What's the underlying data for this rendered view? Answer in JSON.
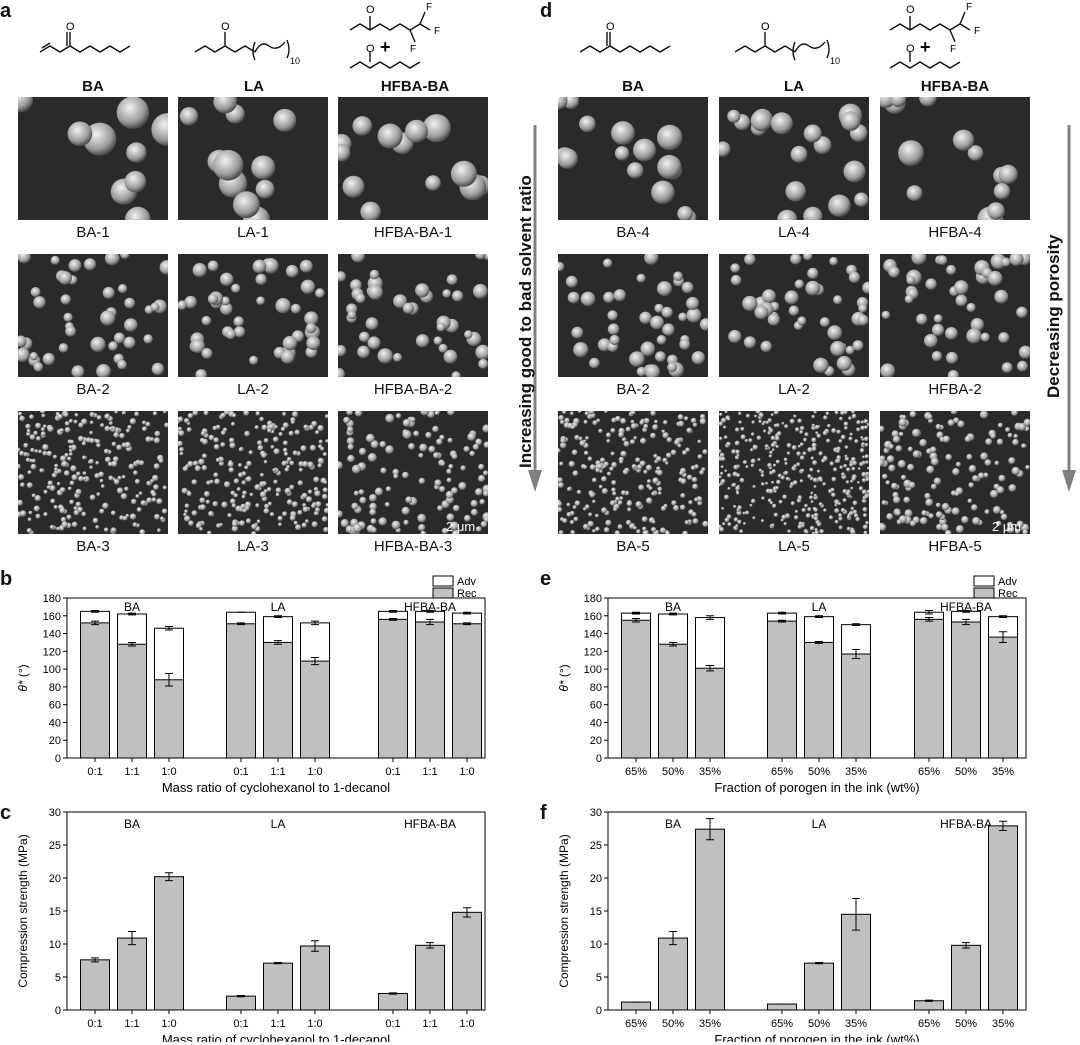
{
  "panel_letters": {
    "a": "a",
    "b": "b",
    "c": "c",
    "d": "d",
    "e": "e",
    "f": "f"
  },
  "monomers": [
    "BA",
    "LA",
    "HFBA-BA"
  ],
  "chem": {
    "f": "F",
    "plus": "+",
    "o": "O",
    "n": "10"
  },
  "left_arrow_label": "Increasing good  to bad solvent ratio",
  "right_arrow_label": "Decreasing porosity",
  "left_sem_labels": [
    [
      "BA-1",
      "LA-1",
      "HFBA-BA-1"
    ],
    [
      "BA-2",
      "LA-2",
      "HFBA-BA-2"
    ],
    [
      "BA-3",
      "LA-3",
      "HFBA-BA-3"
    ]
  ],
  "right_sem_labels": [
    [
      "BA-4",
      "LA-4",
      "HFBA-4"
    ],
    [
      "BA-2",
      "LA-2",
      "HFBA-2"
    ],
    [
      "BA-5",
      "LA-5",
      "HFBA-5"
    ]
  ],
  "scale_bar": "2 μm",
  "colors": {
    "rec": "#c0c0c0",
    "adv": "#ffffff",
    "bar": "#c0c0c0",
    "arrow": "#808080"
  },
  "chart_data": [
    {
      "id": "b",
      "type": "bar",
      "stacked": true,
      "ylabel": "θ* (°)",
      "ylim": [
        0,
        180
      ],
      "yticks": [
        0,
        20,
        40,
        60,
        80,
        100,
        120,
        140,
        160,
        180
      ],
      "xlabel": "Mass ratio of cyclohexanol to 1-decanol",
      "groups": [
        "BA",
        "LA",
        "HFBA-BA"
      ],
      "categories": [
        "0:1",
        "1:1",
        "1:0"
      ],
      "legend": [
        "Adv",
        "Rec"
      ],
      "series": [
        {
          "name": "Rec",
          "values": [
            [
              152,
              128,
              88
            ],
            [
              151,
              130,
              109
            ],
            [
              156,
              153,
              151
            ]
          ],
          "errors": [
            [
              2,
              2,
              7
            ],
            [
              1,
              2,
              4
            ],
            [
              1,
              3,
              1
            ]
          ]
        },
        {
          "name": "Adv",
          "values": [
            [
              165,
              162,
              146
            ],
            [
              164,
              159,
              152
            ],
            [
              165,
              165,
              163
            ]
          ],
          "errors": [
            [
              1,
              1,
              2
            ],
            [
              0,
              1,
              2
            ],
            [
              1,
              1,
              1
            ]
          ]
        }
      ]
    },
    {
      "id": "c",
      "type": "bar",
      "ylabel": "Compression strength (MPa)",
      "ylim": [
        0,
        30
      ],
      "yticks": [
        0,
        5,
        10,
        15,
        20,
        25,
        30
      ],
      "xlabel": "Mass ratio of cyclohexanol to 1-decanol",
      "groups": [
        "BA",
        "LA",
        "HFBA-BA"
      ],
      "categories": [
        "0:1",
        "1:1",
        "1:0"
      ],
      "series": [
        {
          "name": "",
          "values": [
            [
              7.6,
              10.9,
              20.2
            ],
            [
              2.1,
              7.1,
              9.7
            ],
            [
              2.5,
              9.8,
              14.8
            ]
          ],
          "errors": [
            [
              0.3,
              1.0,
              0.6
            ],
            [
              0.1,
              0.1,
              0.8
            ],
            [
              0.1,
              0.4,
              0.7
            ]
          ]
        }
      ]
    },
    {
      "id": "e",
      "type": "bar",
      "stacked": true,
      "ylabel": "θ* (°)",
      "ylim": [
        0,
        180
      ],
      "yticks": [
        0,
        20,
        40,
        60,
        80,
        100,
        120,
        140,
        160,
        180
      ],
      "xlabel": "Fraction of porogen in the ink (wt%)",
      "groups": [
        "BA",
        "LA",
        "HFBA-BA"
      ],
      "categories": [
        "65%",
        "50%",
        "35%"
      ],
      "legend": [
        "Adv",
        "Rec"
      ],
      "series": [
        {
          "name": "Rec",
          "values": [
            [
              155,
              128,
              101
            ],
            [
              154,
              130,
              117
            ],
            [
              156,
              153,
              136
            ]
          ],
          "errors": [
            [
              2,
              2,
              3
            ],
            [
              1,
              1,
              5
            ],
            [
              2,
              3,
              6
            ]
          ]
        },
        {
          "name": "Adv",
          "values": [
            [
              163,
              162,
              158
            ],
            [
              163,
              159,
              150
            ],
            [
              164,
              165,
              159
            ]
          ],
          "errors": [
            [
              1,
              1,
              2
            ],
            [
              1,
              1,
              1
            ],
            [
              2,
              1,
              1
            ]
          ]
        }
      ]
    },
    {
      "id": "f",
      "type": "bar",
      "ylabel": "Compression strength (MPa)",
      "ylim": [
        0,
        30
      ],
      "yticks": [
        0,
        5,
        10,
        15,
        20,
        25,
        30
      ],
      "xlabel": "Fraction of porogen in the ink (wt%)",
      "groups": [
        "BA",
        "LA",
        "HFBA-BA"
      ],
      "categories": [
        "65%",
        "50%",
        "35%"
      ],
      "series": [
        {
          "name": "",
          "values": [
            [
              1.2,
              10.9,
              27.4
            ],
            [
              0.9,
              7.1,
              14.5
            ],
            [
              1.4,
              9.8,
              27.9
            ]
          ],
          "errors": [
            [
              0,
              1.0,
              1.6
            ],
            [
              0,
              0.1,
              2.4
            ],
            [
              0.1,
              0.4,
              0.7
            ]
          ]
        }
      ]
    }
  ]
}
